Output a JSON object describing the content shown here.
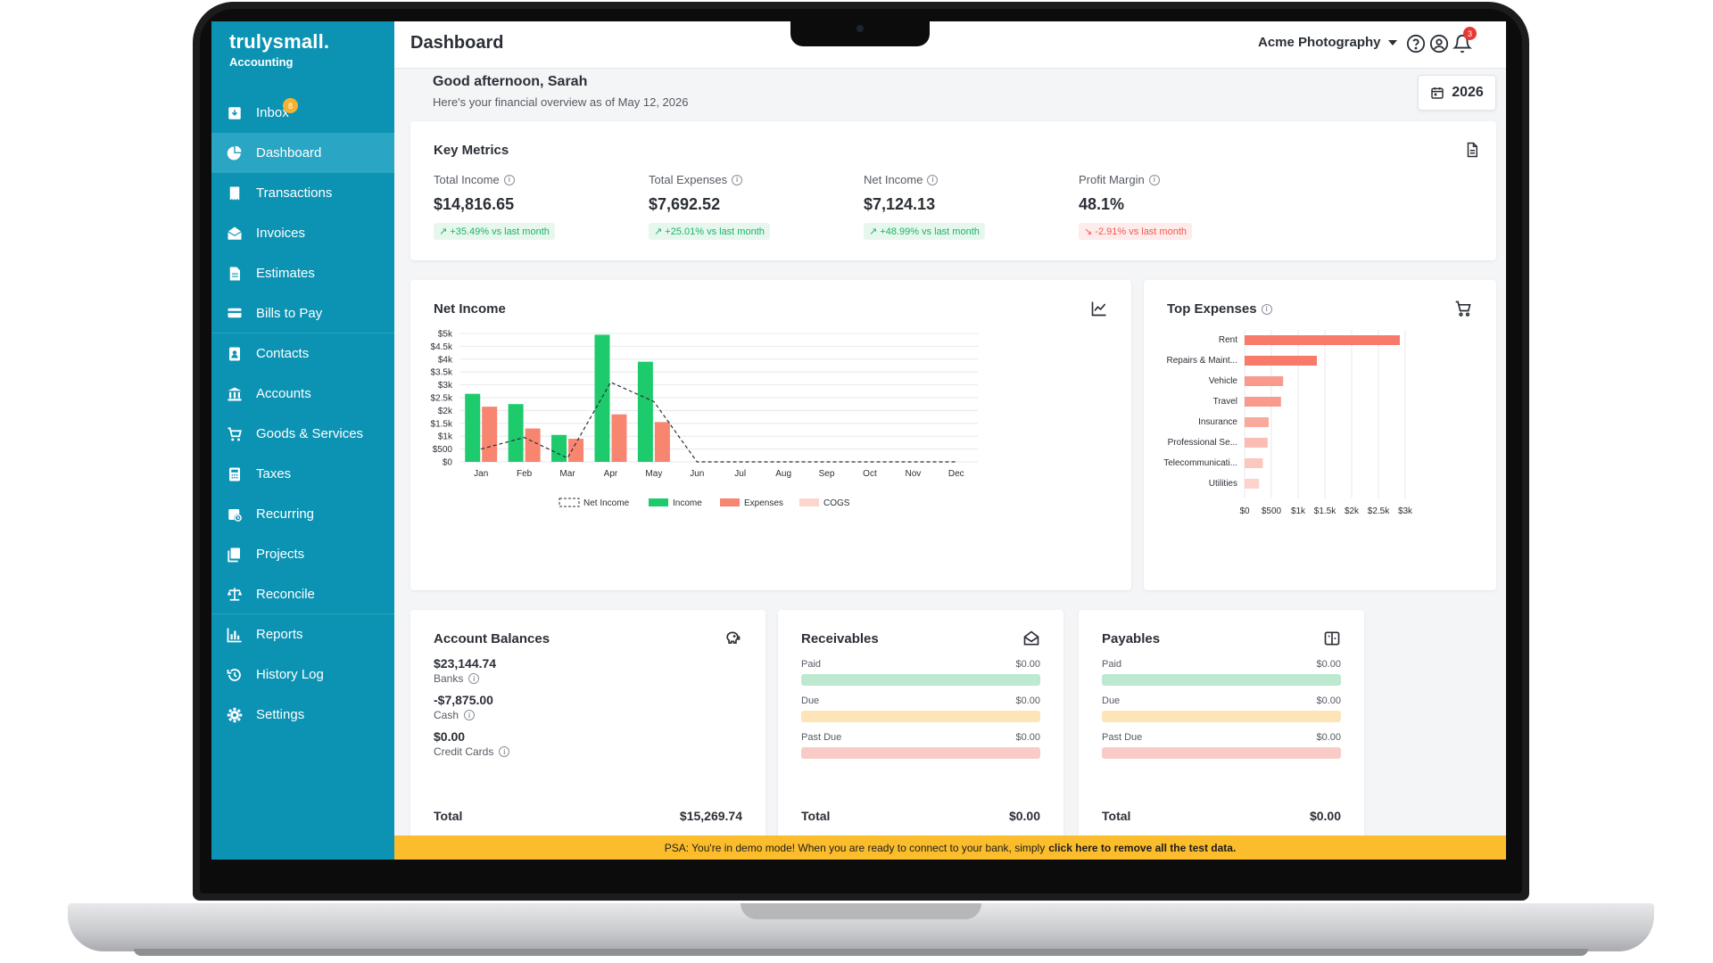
{
  "brand": {
    "name": "trulysmall.",
    "sub": "Accounting"
  },
  "sidebar": {
    "items": [
      {
        "label": "Inbox",
        "icon": "inbox-icon",
        "badge": "8"
      },
      {
        "label": "Dashboard",
        "icon": "dashboard-icon",
        "active": true
      },
      {
        "label": "Transactions",
        "icon": "transactions-icon"
      },
      {
        "label": "Invoices",
        "icon": "invoices-icon"
      },
      {
        "label": "Estimates",
        "icon": "estimates-icon"
      },
      {
        "label": "Bills to Pay",
        "icon": "bills-icon"
      },
      {
        "label": "Contacts",
        "icon": "contacts-icon"
      },
      {
        "label": "Accounts",
        "icon": "accounts-icon"
      },
      {
        "label": "Goods & Services",
        "icon": "cart-icon"
      },
      {
        "label": "Taxes",
        "icon": "calculator-icon"
      },
      {
        "label": "Recurring",
        "icon": "recurring-icon"
      },
      {
        "label": "Projects",
        "icon": "projects-icon"
      },
      {
        "label": "Reconcile",
        "icon": "reconcile-icon"
      },
      {
        "label": "Reports",
        "icon": "reports-icon"
      },
      {
        "label": "History Log",
        "icon": "history-icon"
      },
      {
        "label": "Settings",
        "icon": "gear-icon"
      }
    ]
  },
  "header": {
    "title": "Dashboard",
    "company": "Acme Photography",
    "notification_count": "3"
  },
  "greeting": {
    "title": "Good afternoon, Sarah",
    "subtitle": "Here's your financial overview as of May 12, 2026",
    "year": "2026"
  },
  "key_metrics": {
    "title": "Key Metrics",
    "items": [
      {
        "label": "Total Income",
        "value": "$14,816.65",
        "change": "+35.49% vs last month",
        "trend": "up"
      },
      {
        "label": "Total Expenses",
        "value": "$7,692.52",
        "change": "+25.01% vs last month",
        "trend": "up"
      },
      {
        "label": "Net Income",
        "value": "$7,124.13",
        "change": "+48.99% vs last month",
        "trend": "up"
      },
      {
        "label": "Profit Margin",
        "value": "48.1%",
        "change": "-2.91% vs last month",
        "trend": "down"
      }
    ]
  },
  "net_income_card": {
    "title": "Net Income"
  },
  "top_expenses_card": {
    "title": "Top Expenses"
  },
  "chart_data": [
    {
      "type": "bar",
      "title": "Net Income",
      "categories": [
        "Jan",
        "Feb",
        "Mar",
        "Apr",
        "May",
        "Jun",
        "Jul",
        "Aug",
        "Sep",
        "Oct",
        "Nov",
        "Dec"
      ],
      "series": [
        {
          "name": "Income",
          "type": "bar",
          "color": "#1ecb6c",
          "values": [
            2650,
            2250,
            1050,
            4950,
            3900,
            0,
            0,
            0,
            0,
            0,
            0,
            0
          ]
        },
        {
          "name": "Expenses",
          "type": "bar",
          "color": "#f88570",
          "values": [
            2150,
            1300,
            900,
            1850,
            1550,
            0,
            0,
            0,
            0,
            0,
            0,
            0
          ]
        },
        {
          "name": "COGS",
          "type": "bar",
          "color": "#fbd6cf",
          "values": [
            0,
            0,
            0,
            0,
            0,
            0,
            0,
            0,
            0,
            0,
            0,
            0
          ]
        },
        {
          "name": "Net Income",
          "type": "line",
          "style": "dashed",
          "color": "#2b2f36",
          "values": [
            500,
            950,
            150,
            3100,
            2350,
            0,
            0,
            0,
            0,
            0,
            0,
            0
          ]
        }
      ],
      "yticks": [
        "$0",
        "$500",
        "$1k",
        "$1.5k",
        "$2k",
        "$2.5k",
        "$3k",
        "$3.5k",
        "$4k",
        "$4.5k",
        "$5k"
      ],
      "ylim": [
        0,
        5000
      ],
      "grid": true,
      "legend": "bottom"
    },
    {
      "type": "bar",
      "orientation": "horizontal",
      "title": "Top Expenses",
      "categories": [
        "Rent",
        "Repairs & Maint...",
        "Vehicle",
        "Travel",
        "Insurance",
        "Professional Se...",
        "Telecommunicati...",
        "Utilities"
      ],
      "values": [
        2900,
        1350,
        720,
        680,
        450,
        430,
        340,
        270
      ],
      "colors": [
        "#f87a6a",
        "#f87a6a",
        "#f89a8c",
        "#f89a8c",
        "#faa99d",
        "#fbbdb3",
        "#fbc7be",
        "#fcd4cd"
      ],
      "xticks": [
        "$0",
        "$500",
        "$1k",
        "$1.5k",
        "$2k",
        "$2.5k",
        "$3k"
      ],
      "xlim": [
        0,
        3000
      ],
      "grid": true
    }
  ],
  "account_balances": {
    "title": "Account Balances",
    "items": [
      {
        "value": "$23,144.74",
        "label": "Banks"
      },
      {
        "value": "-$7,875.00",
        "label": "Cash"
      },
      {
        "value": "$0.00",
        "label": "Credit Cards"
      }
    ],
    "total_label": "Total",
    "total_value": "$15,269.74"
  },
  "receivables": {
    "title": "Receivables",
    "rows": [
      {
        "label": "Paid",
        "value": "$0.00",
        "color": "#bde9d0"
      },
      {
        "label": "Due",
        "value": "$0.00",
        "color": "#fde5b8"
      },
      {
        "label": "Past Due",
        "value": "$0.00",
        "color": "#f8cbc6"
      }
    ],
    "total_label": "Total",
    "total_value": "$0.00"
  },
  "payables": {
    "title": "Payables",
    "rows": [
      {
        "label": "Paid",
        "value": "$0.00",
        "color": "#bde9d0"
      },
      {
        "label": "Due",
        "value": "$0.00",
        "color": "#fde5b8"
      },
      {
        "label": "Past Due",
        "value": "$0.00",
        "color": "#f8cbc6"
      }
    ],
    "total_label": "Total",
    "total_value": "$0.00"
  },
  "demo_banner": {
    "text": "PSA: You're in demo mode! When you are ready to connect to your bank, simply",
    "link": "click here to remove all the test data."
  }
}
